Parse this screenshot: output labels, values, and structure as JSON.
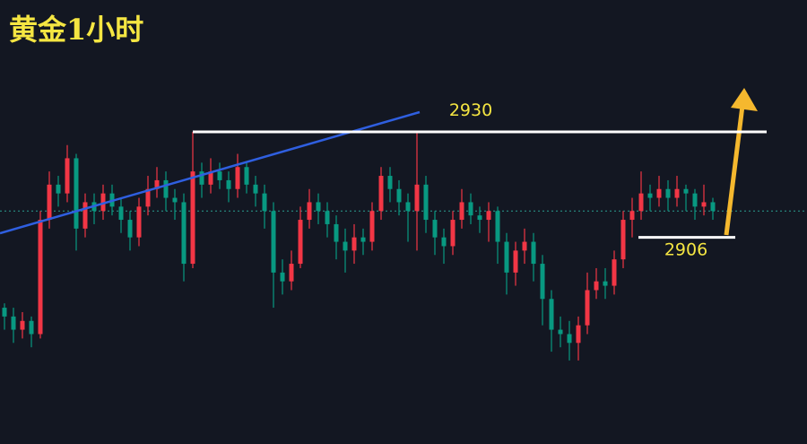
{
  "chart_data": {
    "type": "candlestick",
    "title": "黄金1小时",
    "up_color": "#f23645",
    "down_color": "#089981",
    "ylim": [
      2859,
      2960
    ],
    "open": [
      2890,
      2888,
      2885,
      2887,
      2884,
      2910,
      2918,
      2916,
      2924,
      2908,
      2914,
      2912,
      2916,
      2913,
      2910,
      2906,
      2913,
      2917,
      2919,
      2915,
      2914,
      2900,
      2921,
      2918,
      2921,
      2919,
      2917,
      2922,
      2918,
      2916,
      2912,
      2898,
      2896,
      2900,
      2910,
      2914,
      2912,
      2909,
      2905,
      2903,
      2906,
      2905,
      2912,
      2920,
      2917,
      2914,
      2912,
      2918,
      2910,
      2906,
      2904,
      2910,
      2914,
      2911,
      2910,
      2912,
      2905,
      2898,
      2903,
      2905,
      2900,
      2892,
      2885,
      2884,
      2882,
      2886,
      2894,
      2896,
      2895,
      2901,
      2910,
      2912,
      2916,
      2915,
      2917,
      2915,
      2917,
      2916,
      2913,
      2914
    ],
    "high": [
      2891,
      2890,
      2889,
      2888,
      2912,
      2921,
      2920,
      2927,
      2925,
      2916,
      2916,
      2918,
      2918,
      2915,
      2912,
      2915,
      2920,
      2922,
      2921,
      2917,
      2916,
      2930,
      2923,
      2924,
      2923,
      2921,
      2925,
      2923,
      2920,
      2918,
      2914,
      2901,
      2903,
      2913,
      2917,
      2916,
      2914,
      2911,
      2908,
      2909,
      2908,
      2914,
      2922,
      2922,
      2919,
      2916,
      2930,
      2920,
      2912,
      2908,
      2912,
      2917,
      2916,
      2913,
      2914,
      2913,
      2907,
      2905,
      2908,
      2907,
      2902,
      2894,
      2888,
      2887,
      2888,
      2898,
      2899,
      2899,
      2903,
      2912,
      2915,
      2921,
      2918,
      2920,
      2919,
      2920,
      2918,
      2917,
      2918,
      2915
    ],
    "low": [
      2885,
      2882,
      2883,
      2881,
      2883,
      2908,
      2913,
      2914,
      2903,
      2906,
      2909,
      2910,
      2911,
      2907,
      2903,
      2904,
      2911,
      2915,
      2912,
      2910,
      2896,
      2899,
      2915,
      2916,
      2917,
      2914,
      2915,
      2916,
      2913,
      2908,
      2890,
      2893,
      2894,
      2899,
      2908,
      2909,
      2906,
      2901,
      2898,
      2900,
      2902,
      2903,
      2910,
      2914,
      2911,
      2905,
      2903,
      2907,
      2902,
      2900,
      2902,
      2908,
      2909,
      2907,
      2905,
      2900,
      2893,
      2895,
      2900,
      2896,
      2886,
      2880,
      2881,
      2878,
      2878,
      2884,
      2892,
      2892,
      2893,
      2899,
      2906,
      2910,
      2912,
      2913,
      2912,
      2913,
      2912,
      2910,
      2911,
      2910
    ],
    "close": [
      2888,
      2885,
      2887,
      2884,
      2910,
      2918,
      2916,
      2924,
      2908,
      2914,
      2912,
      2916,
      2913,
      2910,
      2906,
      2913,
      2917,
      2919,
      2915,
      2914,
      2900,
      2921,
      2918,
      2921,
      2919,
      2917,
      2922,
      2918,
      2916,
      2912,
      2898,
      2896,
      2900,
      2910,
      2914,
      2912,
      2909,
      2905,
      2903,
      2906,
      2905,
      2912,
      2920,
      2917,
      2914,
      2912,
      2918,
      2910,
      2906,
      2904,
      2910,
      2914,
      2911,
      2910,
      2912,
      2905,
      2898,
      2903,
      2905,
      2900,
      2892,
      2885,
      2884,
      2882,
      2886,
      2894,
      2896,
      2895,
      2901,
      2910,
      2912,
      2916,
      2915,
      2917,
      2915,
      2917,
      2916,
      2913,
      2914,
      2912
    ],
    "levels": [
      {
        "value": 2930,
        "color": "#ffffff"
      },
      {
        "value": 2906,
        "color": "#ffffff"
      }
    ]
  }
}
